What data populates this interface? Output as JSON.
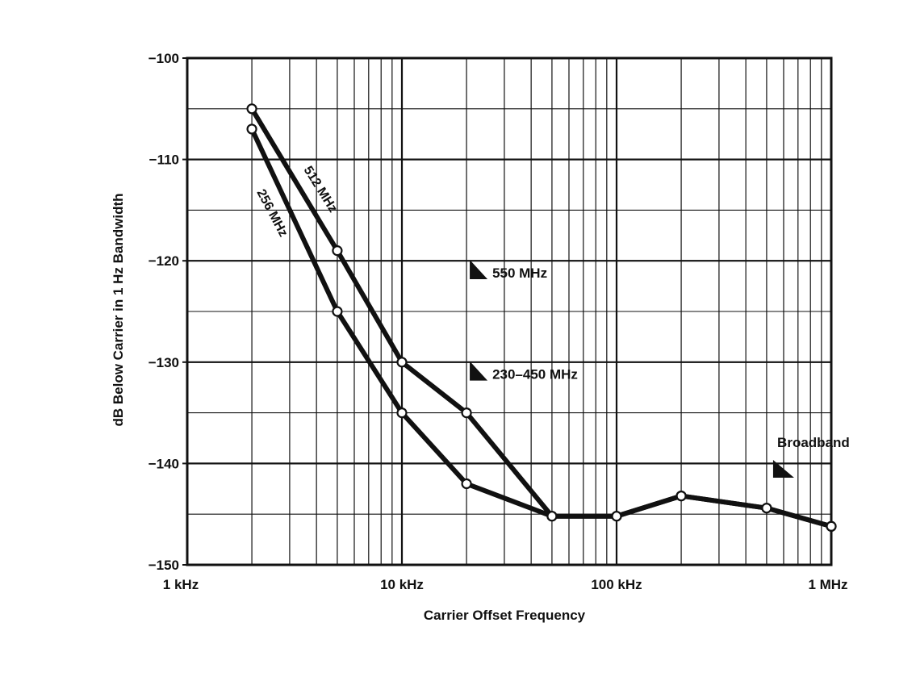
{
  "chart_data": {
    "type": "line",
    "x_scale": "log",
    "xlabel": "Carrier Offset Frequency",
    "ylabel": "dB Below Carrier in 1 Hz Bandwidth",
    "xlim": [
      1000,
      1000000
    ],
    "ylim": [
      -150,
      -100
    ],
    "grid": true,
    "x_tick_values": [
      1000,
      10000,
      100000,
      1000000
    ],
    "x_tick_labels": [
      "1 kHz",
      "10 kHz",
      "100 kHz",
      "1 MHz"
    ],
    "y_tick_values": [
      -100,
      -110,
      -120,
      -130,
      -140,
      -150
    ],
    "y_tick_labels": [
      "−100",
      "−110",
      "−120",
      "−130",
      "−140",
      "−150"
    ],
    "series": [
      {
        "name": "512 MHz",
        "points": [
          {
            "x": 2000,
            "y": -105
          },
          {
            "x": 5000,
            "y": -119
          },
          {
            "x": 10000,
            "y": -130
          },
          {
            "x": 20000,
            "y": -135
          },
          {
            "x": 50000,
            "y": -145.2
          },
          {
            "x": 100000,
            "y": -145.2
          },
          {
            "x": 200000,
            "y": -143.2
          },
          {
            "x": 500000,
            "y": -144.4
          },
          {
            "x": 1000000,
            "y": -146.2
          }
        ]
      },
      {
        "name": "256 MHz",
        "points": [
          {
            "x": 2000,
            "y": -107
          },
          {
            "x": 5000,
            "y": -125
          },
          {
            "x": 10000,
            "y": -135
          },
          {
            "x": 20000,
            "y": -142
          },
          {
            "x": 50000,
            "y": -145.2
          },
          {
            "x": 100000,
            "y": -145.2
          },
          {
            "x": 200000,
            "y": -143.2
          },
          {
            "x": 500000,
            "y": -144.4
          },
          {
            "x": 1000000,
            "y": -146.2
          }
        ]
      }
    ],
    "annotations": [
      {
        "text": "550 MHz",
        "x": 20000,
        "y": -121.5
      },
      {
        "text": "230–450 MHz",
        "x": 20000,
        "y": -131.5
      },
      {
        "text": "Broadband",
        "x": 500000,
        "y": -141
      }
    ]
  }
}
